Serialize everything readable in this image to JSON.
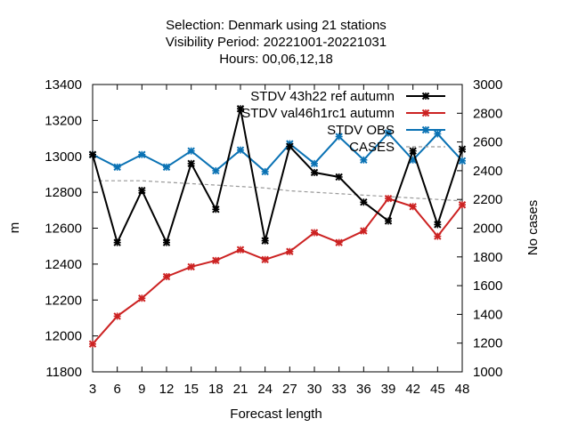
{
  "chart_data": {
    "type": "line",
    "title_lines": [
      "Selection: Denmark using    21 stations",
      "Visibility   Period: 20221001-20221031",
      "Hours:  00,06,12,18"
    ],
    "xlabel": "Forecast length",
    "ylabel": "m",
    "y2label": "No cases",
    "x": [
      3,
      6,
      9,
      12,
      15,
      18,
      21,
      24,
      27,
      30,
      33,
      36,
      39,
      42,
      45,
      48
    ],
    "xlim": [
      3,
      48
    ],
    "ylim": [
      11800,
      13400
    ],
    "y2lim": [
      1000,
      3000
    ],
    "yticks": [
      "11800",
      "12000",
      "12200",
      "12400",
      "12600",
      "12800",
      "13000",
      "13200",
      "13400"
    ],
    "y2ticks": [
      "1000",
      "1200",
      "1400",
      "1600",
      "1800",
      "2000",
      "2200",
      "2400",
      "2600",
      "2800",
      "3000"
    ],
    "xticks": [
      "3",
      "6",
      "9",
      "12",
      "15",
      "18",
      "21",
      "24",
      "27",
      "30",
      "33",
      "36",
      "39",
      "42",
      "45",
      "48"
    ],
    "legend_position": "top-right",
    "grid": false,
    "series": [
      {
        "name": "STDV 43h22_ref_autumn",
        "legend_label": "STDV 43h22 ref autumn",
        "color": "#000000",
        "axis": "y",
        "values": [
          13010,
          12520,
          12810,
          12520,
          12960,
          12705,
          13265,
          12530,
          13055,
          12910,
          12885,
          12745,
          12640,
          13030,
          12620,
          13040
        ]
      },
      {
        "name": "STDV val46h1rc1_autumn",
        "legend_label": "STDV val46h1rc1 autumn",
        "color": "#cc2222",
        "axis": "y",
        "values": [
          11955,
          12110,
          12210,
          12330,
          12385,
          12420,
          12480,
          12425,
          12470,
          12575,
          12520,
          12585,
          12765,
          12720,
          12555,
          12730
        ]
      },
      {
        "name": "STDV OBS",
        "color": "#0a72b4",
        "axis": "y",
        "values": [
          13010,
          12940,
          13010,
          12940,
          13030,
          12920,
          13035,
          12915,
          13070,
          12960,
          13110,
          12980,
          13130,
          12980,
          13125,
          12975
        ]
      },
      {
        "name": "CASES",
        "color": "#999999",
        "axis": "y2",
        "values": [
          2330,
          2330,
          2330,
          2320,
          2310,
          2300,
          2290,
          2280,
          2260,
          2250,
          2240,
          2230,
          2220,
          2210,
          2200,
          2190
        ]
      }
    ]
  }
}
